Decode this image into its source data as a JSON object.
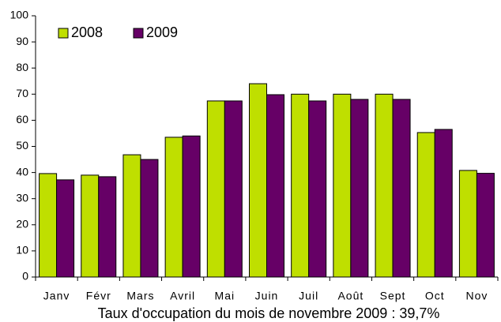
{
  "chart_data": {
    "type": "bar",
    "subtitle": "Taux d'occupation du mois de novembre 2009 : 39,7%",
    "categories": [
      "Janv",
      "Févr",
      "Mars",
      "Avril",
      "Mai",
      "Juin",
      "Juil",
      "Août",
      "Sept",
      "Oct",
      "Nov"
    ],
    "series": [
      {
        "name": "2008",
        "color": "#bfdf00",
        "values": [
          39.6,
          39,
          46.8,
          53.5,
          67.4,
          74,
          70,
          70,
          70,
          55.3,
          40.8
        ]
      },
      {
        "name": "2009",
        "color": "#660066",
        "values": [
          37.2,
          38.4,
          45,
          54,
          67.4,
          69.8,
          67.4,
          68,
          68,
          56.5,
          39.7
        ]
      }
    ],
    "ylim": [
      0,
      100
    ],
    "yticks": [
      0,
      10,
      20,
      30,
      40,
      50,
      60,
      70,
      80,
      90,
      100
    ],
    "grid": false,
    "legend": "upper left"
  }
}
